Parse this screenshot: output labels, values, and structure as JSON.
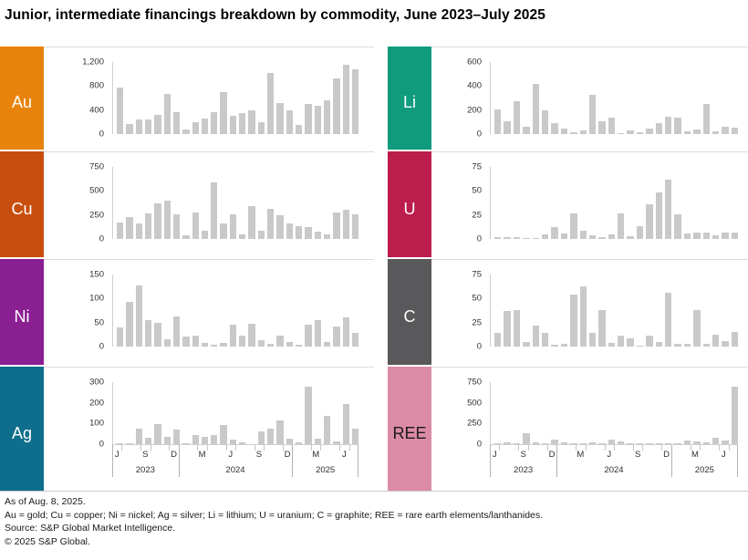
{
  "title": "Junior, intermediate financings breakdown by commodity,  June 2023–July 2025",
  "footer": {
    "as_of": "As of Aug. 8, 2025.",
    "legend": "Au = gold; Cu = copper; Ni = nickel; Ag = silver; Li = lithium; U = uranium; C = graphite; REE = rare earth elements/lanthanides.",
    "source": "Source: S&P Global Market Intelligence.",
    "copyright": "© 2025 S&P Global."
  },
  "bar_color": "#c9c9c9",
  "chart_data": {
    "type": "bar",
    "x": [
      "Jun 2023",
      "Jul 2023",
      "Aug 2023",
      "Sep 2023",
      "Oct 2023",
      "Nov 2023",
      "Dec 2023",
      "Jan 2024",
      "Feb 2024",
      "Mar 2024",
      "Apr 2024",
      "May 2024",
      "Jun 2024",
      "Jul 2024",
      "Aug 2024",
      "Sep 2024",
      "Oct 2024",
      "Nov 2024",
      "Dec 2024",
      "Jan 2025",
      "Feb 2025",
      "Mar 2025",
      "Apr 2025",
      "May 2025",
      "Jun 2025",
      "Jul 2025"
    ],
    "axis": {
      "n_months": 26,
      "month_labels": [
        {
          "index": 0,
          "label": "J"
        },
        {
          "index": 3,
          "label": "S"
        },
        {
          "index": 6,
          "label": "D"
        },
        {
          "index": 9,
          "label": "M"
        },
        {
          "index": 12,
          "label": "J"
        },
        {
          "index": 15,
          "label": "S"
        },
        {
          "index": 18,
          "label": "D"
        },
        {
          "index": 21,
          "label": "M"
        },
        {
          "index": 24,
          "label": "J"
        }
      ],
      "tick_boundaries": [
        1,
        3,
        4,
        6,
        9,
        10,
        12,
        13,
        15,
        16,
        18,
        21,
        22,
        24,
        25
      ],
      "year_separators": [
        0,
        7,
        19,
        26
      ],
      "years": [
        {
          "label": "2023",
          "center": 3.5
        },
        {
          "label": "2024",
          "center": 13
        },
        {
          "label": "2025",
          "center": 22.5
        }
      ]
    },
    "panels": [
      {
        "name": "Au",
        "color": "#E8830D",
        "text_color": "#ffffff",
        "ymax": 1200,
        "yticks": [
          0,
          400,
          800,
          1200
        ],
        "ytick_labels": [
          "0",
          "400",
          "800",
          "1,200"
        ],
        "values": [
          780,
          170,
          240,
          240,
          320,
          670,
          370,
          70,
          200,
          255,
          360,
          700,
          300,
          355,
          400,
          200,
          1020,
          520,
          390,
          150,
          505,
          465,
          560,
          930,
          1160,
          1080
        ]
      },
      {
        "name": "Cu",
        "color": "#C84E0E",
        "text_color": "#ffffff",
        "ymax": 750,
        "yticks": [
          0,
          250,
          500,
          750
        ],
        "ytick_labels": [
          "0",
          "250",
          "500",
          "750"
        ],
        "values": [
          170,
          230,
          165,
          270,
          370,
          400,
          255,
          40,
          280,
          85,
          590,
          160,
          255,
          50,
          345,
          90,
          310,
          250,
          165,
          130,
          125,
          80,
          45,
          280,
          300,
          255
        ]
      },
      {
        "name": "Ni",
        "color": "#8A1F92",
        "text_color": "#ffffff",
        "ymax": 150,
        "yticks": [
          0,
          50,
          100,
          150
        ],
        "ytick_labels": [
          "0",
          "50",
          "100",
          "150"
        ],
        "values": [
          40,
          93,
          127,
          55,
          50,
          15,
          62,
          20,
          22,
          7,
          4,
          8,
          45,
          22,
          48,
          13,
          6,
          23,
          9,
          3,
          46,
          55,
          9,
          42,
          60,
          28
        ]
      },
      {
        "name": "Ag",
        "color": "#0E6E8C",
        "text_color": "#ffffff",
        "ymax": 300,
        "yticks": [
          0,
          100,
          200,
          300
        ],
        "ytick_labels": [
          "0",
          "100",
          "200",
          "300"
        ],
        "values": [
          5,
          3,
          75,
          30,
          95,
          35,
          72,
          3,
          45,
          37,
          42,
          93,
          20,
          10,
          2,
          63,
          75,
          113,
          25,
          7,
          280,
          25,
          135,
          13,
          195,
          73
        ]
      },
      {
        "name": "Li",
        "color": "#109B7D",
        "text_color": "#ffffff",
        "ymax": 600,
        "yticks": [
          0,
          200,
          400,
          600
        ],
        "ytick_labels": [
          "0",
          "200",
          "400",
          "600"
        ],
        "values": [
          205,
          105,
          275,
          60,
          420,
          200,
          95,
          48,
          15,
          30,
          325,
          105,
          140,
          8,
          30,
          15,
          45,
          95,
          145,
          135,
          25,
          35,
          250,
          25,
          60,
          55
        ]
      },
      {
        "name": "U",
        "color": "#BB1D4D",
        "text_color": "#ffffff",
        "ymax": 75,
        "yticks": [
          0,
          25,
          50,
          75
        ],
        "ytick_labels": [
          "0",
          "25",
          "50",
          "75"
        ],
        "values": [
          2,
          2,
          2,
          1,
          1,
          5,
          12,
          6,
          27,
          9,
          4,
          2,
          5,
          27,
          3,
          13,
          36,
          48,
          62,
          26,
          6,
          7,
          7,
          4,
          7,
          7
        ]
      },
      {
        "name": "C",
        "color": "#59595B",
        "text_color": "#ffffff",
        "ymax": 75,
        "yticks": [
          0,
          25,
          50,
          75
        ],
        "ytick_labels": [
          "0",
          "25",
          "50",
          "75"
        ],
        "values": [
          14,
          37,
          38,
          5,
          22,
          14,
          2,
          3,
          54,
          63,
          14,
          38,
          4,
          11,
          9,
          1,
          11,
          5,
          56,
          3,
          3,
          38,
          3,
          12,
          6,
          15
        ]
      },
      {
        "name": "REE",
        "color": "#DC8BA6",
        "text_color": "#1a1a1a",
        "ymax": 750,
        "yticks": [
          0,
          250,
          500,
          750
        ],
        "ytick_labels": [
          "0",
          "250",
          "500",
          "750"
        ],
        "values": [
          10,
          25,
          12,
          130,
          18,
          10,
          55,
          22,
          8,
          10,
          25,
          12,
          50,
          30,
          10,
          12,
          12,
          12,
          10,
          8,
          40,
          30,
          18,
          80,
          45,
          700
        ]
      }
    ]
  }
}
